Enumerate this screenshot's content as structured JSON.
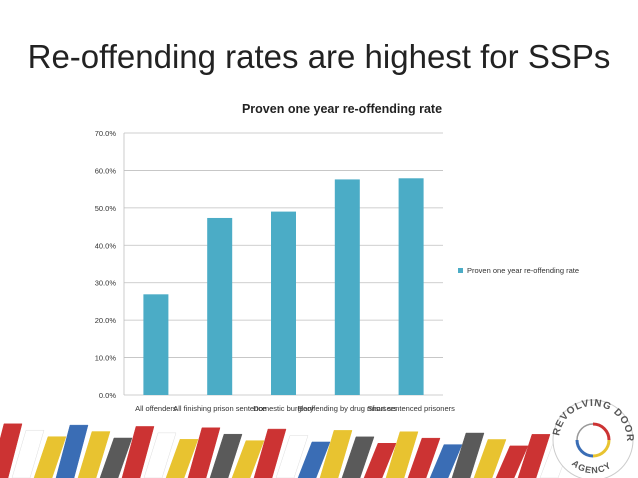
{
  "slide": {
    "title": "Re-offending rates are highest for SSPs"
  },
  "chart_data": {
    "type": "bar",
    "title": "Proven one year re-offending rate",
    "categories": [
      "All offenders",
      "All finishing prison sentence",
      "Domestic burglary",
      "Reoffending by drug misusers",
      "Short sentenced prisoners"
    ],
    "series": [
      {
        "name": "Proven one year re-offending rate",
        "values": [
          26.9,
          47.3,
          49.0,
          57.6,
          57.9
        ]
      }
    ],
    "ylim": [
      0,
      70
    ],
    "yticks": [
      0,
      10,
      20,
      30,
      40,
      50,
      60,
      70
    ],
    "ytick_labels": [
      "0.0%",
      "10.0%",
      "20.0%",
      "30.0%",
      "40.0%",
      "50.0%",
      "60.0%",
      "70.0%"
    ],
    "grid": true,
    "legend_position": "right",
    "bar_color": "#4bacc6"
  },
  "logo": {
    "text": "REVOLVING DOORS AGENCY",
    "colors": [
      "#cc3333",
      "#3a6db5",
      "#e8c330",
      "#5a5a5a"
    ]
  }
}
